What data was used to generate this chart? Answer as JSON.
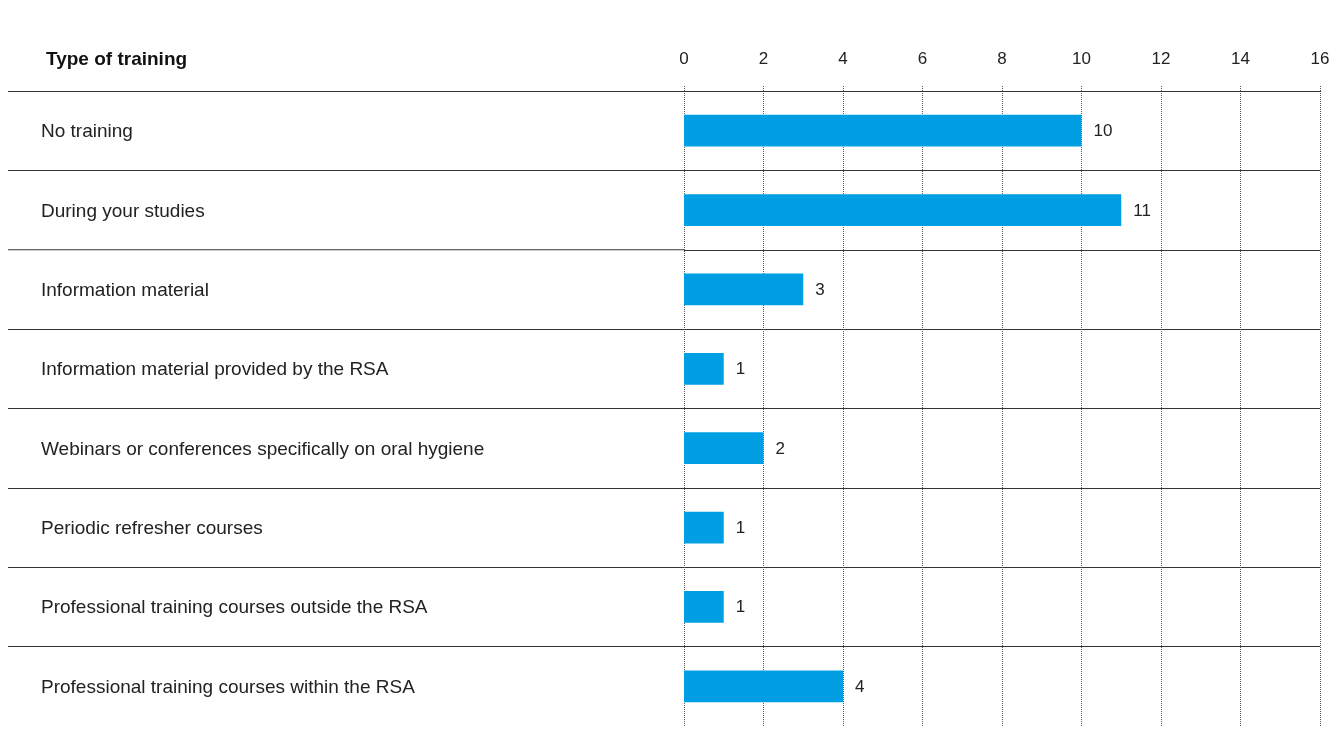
{
  "chart_data": {
    "type": "bar",
    "orientation": "horizontal",
    "ylabel": "Type of training",
    "categories": [
      "No training",
      "During your studies",
      "Information material",
      "Information material provided by the RSA",
      "Webinars or conferences specifically on oral hygiene",
      "Periodic refresher courses",
      "Professional training courses outside the RSA",
      "Professional training courses within the RSA"
    ],
    "values": [
      10,
      11,
      3,
      1,
      2,
      1,
      1,
      4
    ],
    "color": "#009fe3",
    "x2lim": [
      0,
      16
    ],
    "x2ticks": [
      0,
      2,
      4,
      6,
      8,
      10,
      12,
      14,
      16
    ],
    "grid": true,
    "data_labels": true
  }
}
